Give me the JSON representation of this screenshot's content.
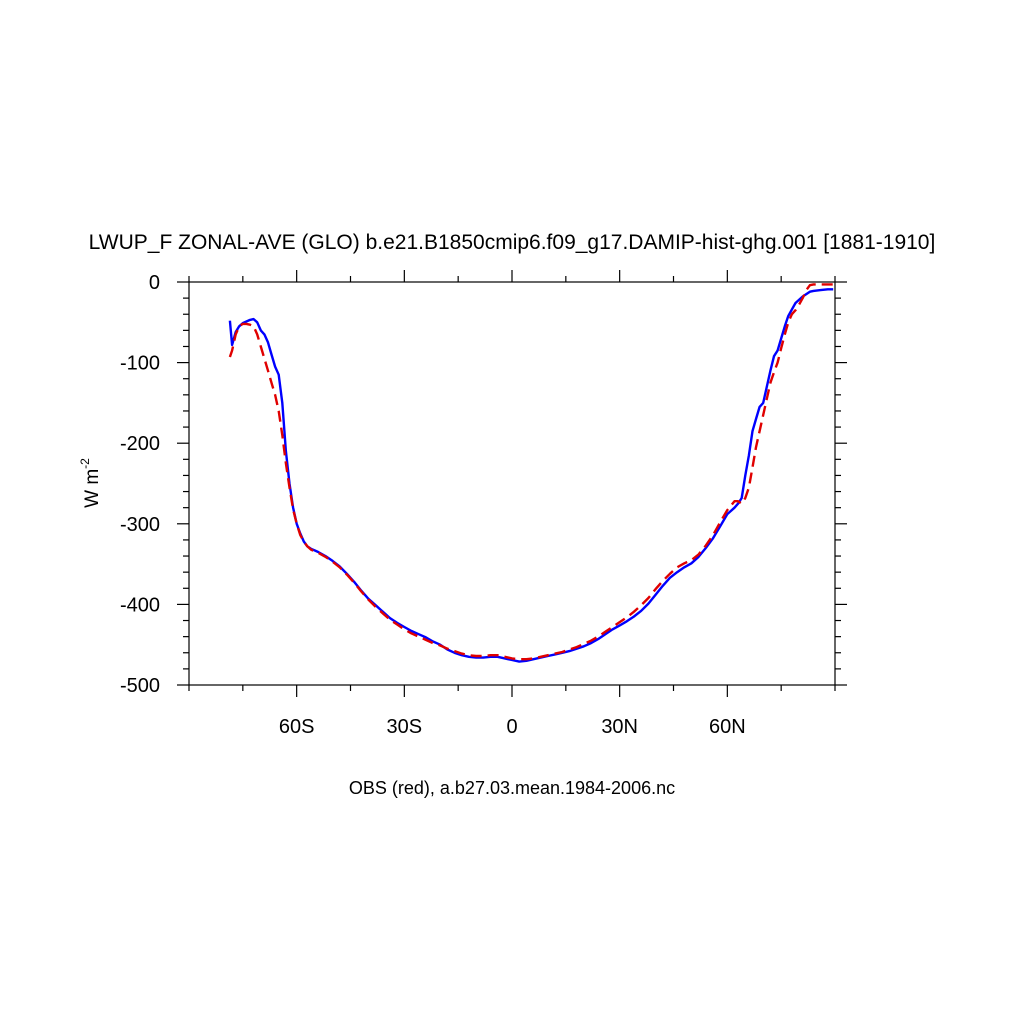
{
  "chart_data": {
    "type": "line",
    "title": "LWUP_F ZONAL-AVE (GLO) b.e21.B1850cmip6.f09_g17.DAMIP-hist-ghg.001 [1881-1910]",
    "ylabel": "W m",
    "ylabel_exp": "-2",
    "caption": "OBS (red), a.b27.03.mean.1984-2006.nc",
    "xlim": [
      -90,
      90
    ],
    "ylim": [
      -500,
      0
    ],
    "x_ticks": [
      {
        "value": -60,
        "label": "60S"
      },
      {
        "value": -30,
        "label": "30S"
      },
      {
        "value": 0,
        "label": "0"
      },
      {
        "value": 30,
        "label": "30N"
      },
      {
        "value": 60,
        "label": "60N"
      }
    ],
    "y_ticks": [
      {
        "value": 0,
        "label": "0"
      },
      {
        "value": -100,
        "label": "-100"
      },
      {
        "value": -200,
        "label": "-200"
      },
      {
        "value": -300,
        "label": "-300"
      },
      {
        "value": -400,
        "label": "-400"
      },
      {
        "value": -500,
        "label": "-500"
      }
    ],
    "grid": false,
    "series": [
      {
        "color": "#0000ff",
        "dash": "solid",
        "x": [
          -78.6,
          -78,
          -77,
          -76,
          -75,
          -74,
          -73,
          -72,
          -71,
          -70,
          -69,
          -68,
          -67,
          -66,
          -65,
          -64,
          -63,
          -62,
          -61,
          -60,
          -59,
          -58,
          -57,
          -56,
          -55,
          -54,
          -52,
          -50,
          -48,
          -46,
          -44,
          -42,
          -40,
          -38,
          -36,
          -34,
          -32,
          -30,
          -28,
          -26,
          -24,
          -22,
          -20,
          -18,
          -16,
          -14,
          -12,
          -10,
          -8,
          -6,
          -4,
          -2,
          0,
          2,
          4,
          6,
          8,
          10,
          12,
          14,
          16,
          18,
          20,
          22,
          24,
          26,
          28,
          30,
          32,
          34,
          36,
          38,
          40,
          42,
          44,
          46,
          48,
          50,
          52,
          54,
          56,
          58,
          60,
          62,
          63,
          64,
          65,
          66,
          67,
          68,
          69,
          70,
          71,
          72,
          73,
          74,
          75,
          76,
          77,
          78,
          79,
          80,
          81,
          82,
          83,
          84,
          86,
          88,
          89.5
        ],
        "y": [
          -48,
          -78,
          -62,
          -55,
          -51,
          -49,
          -47,
          -46,
          -50,
          -60,
          -65,
          -75,
          -90,
          -105,
          -115,
          -150,
          -210,
          -250,
          -280,
          -300,
          -312,
          -322,
          -328,
          -331,
          -333,
          -335,
          -340,
          -346,
          -353,
          -362,
          -372,
          -383,
          -393,
          -401,
          -409,
          -417,
          -423,
          -428,
          -433,
          -437,
          -441,
          -446,
          -450,
          -456,
          -460,
          -463,
          -465,
          -466,
          -466,
          -465,
          -465,
          -467,
          -469,
          -471,
          -470,
          -468,
          -466,
          -464,
          -462,
          -460,
          -458,
          -455,
          -452,
          -448,
          -443,
          -437,
          -431,
          -426,
          -421,
          -415,
          -408,
          -399,
          -388,
          -377,
          -367,
          -360,
          -354,
          -349,
          -341,
          -330,
          -318,
          -303,
          -288,
          -280,
          -275,
          -268,
          -240,
          -215,
          -185,
          -170,
          -155,
          -150,
          -130,
          -110,
          -92,
          -85,
          -70,
          -55,
          -42,
          -34,
          -26,
          -22,
          -18,
          -15,
          -12,
          -11,
          -10,
          -9,
          -9
        ]
      },
      {
        "color": "#e00000",
        "dash": "dashed",
        "x": [
          -78.6,
          -78,
          -77,
          -76,
          -75,
          -74,
          -73,
          -72,
          -71,
          -70,
          -69,
          -68,
          -67,
          -66,
          -65,
          -64,
          -63,
          -62,
          -61,
          -60,
          -59,
          -58,
          -57,
          -56,
          -55,
          -54,
          -52,
          -50,
          -48,
          -46,
          -44,
          -42,
          -40,
          -38,
          -36,
          -34,
          -32,
          -30,
          -28,
          -26,
          -24,
          -22,
          -20,
          -18,
          -16,
          -14,
          -12,
          -10,
          -8,
          -6,
          -4,
          -2,
          0,
          2,
          4,
          6,
          8,
          10,
          12,
          14,
          16,
          18,
          20,
          22,
          24,
          26,
          28,
          30,
          32,
          34,
          36,
          38,
          40,
          42,
          44,
          46,
          48,
          50,
          52,
          54,
          56,
          58,
          60,
          62,
          63,
          64,
          65,
          66,
          67,
          68,
          69,
          70,
          71,
          72,
          73,
          74,
          75,
          76,
          77,
          78,
          79,
          80,
          81,
          82,
          83,
          84,
          86,
          88,
          89.5
        ],
        "y": [
          -93,
          -85,
          -65,
          -55,
          -52,
          -52,
          -53,
          -55,
          -65,
          -80,
          -95,
          -110,
          -125,
          -140,
          -160,
          -190,
          -225,
          -255,
          -282,
          -300,
          -314,
          -322,
          -328,
          -332,
          -334,
          -336,
          -341,
          -347,
          -354,
          -363,
          -373,
          -384,
          -394,
          -403,
          -411,
          -419,
          -425,
          -431,
          -436,
          -440,
          -444,
          -448,
          -451,
          -455,
          -458,
          -461,
          -463,
          -464,
          -464,
          -463,
          -463,
          -465,
          -467,
          -468,
          -468,
          -467,
          -465,
          -463,
          -461,
          -459,
          -456,
          -453,
          -449,
          -445,
          -440,
          -434,
          -428,
          -422,
          -416,
          -409,
          -401,
          -392,
          -381,
          -371,
          -362,
          -354,
          -349,
          -345,
          -338,
          -327,
          -314,
          -298,
          -283,
          -272,
          -272,
          -275,
          -268,
          -255,
          -230,
          -205,
          -185,
          -165,
          -145,
          -125,
          -112,
          -100,
          -82,
          -65,
          -50,
          -40,
          -35,
          -28,
          -20,
          -10,
          -4,
          -3,
          -3,
          -3,
          -3
        ]
      }
    ]
  }
}
